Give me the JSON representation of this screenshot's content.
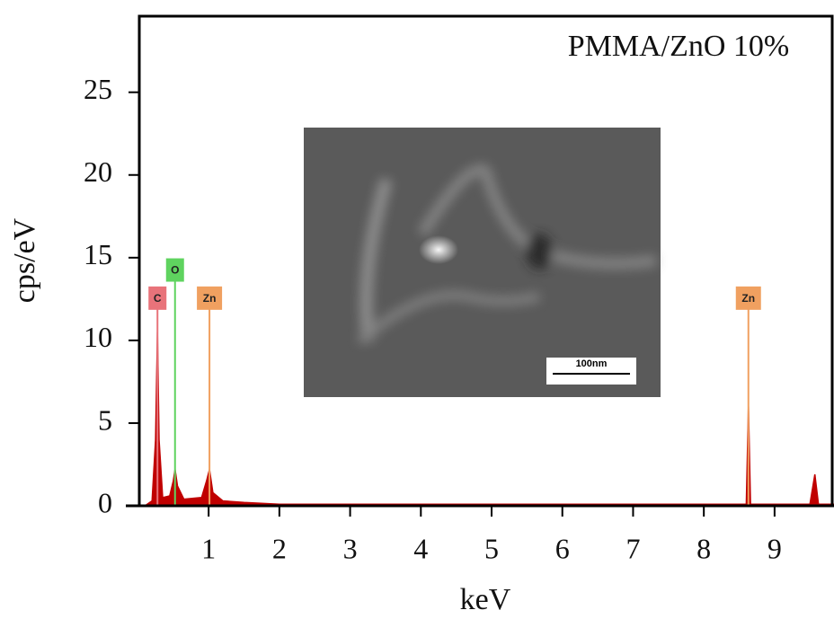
{
  "chart_data": {
    "type": "area",
    "annotation": "PMMA/ZnO 10%",
    "x_label": "keV",
    "y_label": "cps/eV",
    "inset_scale_label": "100nm",
    "x": [
      0.1,
      0.2,
      0.25,
      0.277,
      0.3,
      0.35,
      0.45,
      0.5,
      0.525,
      0.56,
      0.65,
      0.9,
      0.97,
      1.012,
      1.06,
      1.2,
      1.5,
      2,
      3,
      5,
      8,
      8.6,
      8.63,
      8.66,
      9.5,
      9.57,
      9.62,
      9.84
    ],
    "series": [
      {
        "color": "#c00000",
        "values": [
          0,
          0.3,
          4,
          10.5,
          4,
          0.5,
          0.6,
          1.5,
          2.2,
          1.2,
          0.4,
          0.5,
          1.5,
          2.2,
          0.8,
          0.3,
          0.2,
          0.1,
          0.1,
          0.1,
          0.1,
          0.1,
          6,
          0.1,
          0.1,
          1.9,
          0.1,
          0.1
        ]
      }
    ],
    "markers": [
      {
        "label": "C",
        "x": 0.277,
        "y": 12.5,
        "color": "#e8737a"
      },
      {
        "label": "O",
        "x": 0.525,
        "y": 14.2,
        "color": "#5fd35f"
      },
      {
        "label": "Zn",
        "x": 1.012,
        "y": 12.5,
        "color": "#f0a060"
      },
      {
        "label": "Zn",
        "x": 8.63,
        "y": 12.5,
        "color": "#f0a060"
      }
    ],
    "xlim": [
      0.02,
      9.84
    ],
    "ylim": [
      0,
      29.6
    ],
    "xticks": [
      1,
      2,
      3,
      4,
      5,
      6,
      7,
      8,
      9
    ],
    "yticks": [
      0,
      5,
      10,
      15,
      20,
      25
    ]
  }
}
